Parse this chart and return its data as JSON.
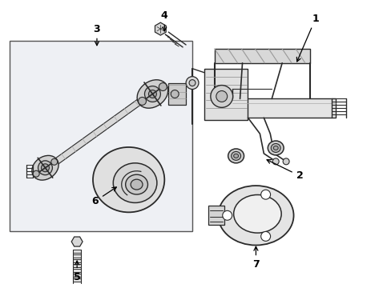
{
  "background_color": "#ffffff",
  "line_color": "#2a2a2a",
  "light_fill": "#f0f0f0",
  "mid_fill": "#e0e0e0",
  "box_fill": "#eef0f4",
  "box_border": "#555555"
}
